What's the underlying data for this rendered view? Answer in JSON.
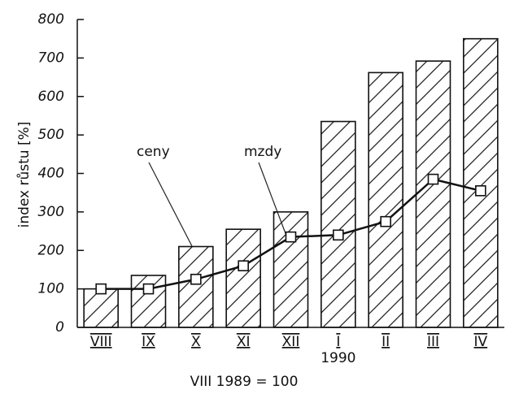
{
  "chart_data": {
    "type": "bar",
    "ylabel": "index růstu [%]",
    "categories": [
      "VIII",
      "IX",
      "X",
      "XI",
      "XII",
      "I",
      "II",
      "III",
      "IV"
    ],
    "series": [
      {
        "name": "ceny",
        "type": "bar",
        "color": "#111111",
        "values": [
          100,
          135,
          210,
          255,
          300,
          535,
          662,
          692,
          750
        ]
      },
      {
        "name": "mzdy",
        "type": "line",
        "color": "#111111",
        "values": [
          100,
          100,
          125,
          160,
          235,
          240,
          275,
          385,
          355
        ]
      }
    ],
    "annotations": [
      "1990"
    ],
    "caption": "VIII 1989 = 100",
    "ylim": [
      0,
      800
    ],
    "yticks": [
      0,
      100,
      200,
      300,
      400,
      500,
      600,
      700,
      800
    ]
  }
}
